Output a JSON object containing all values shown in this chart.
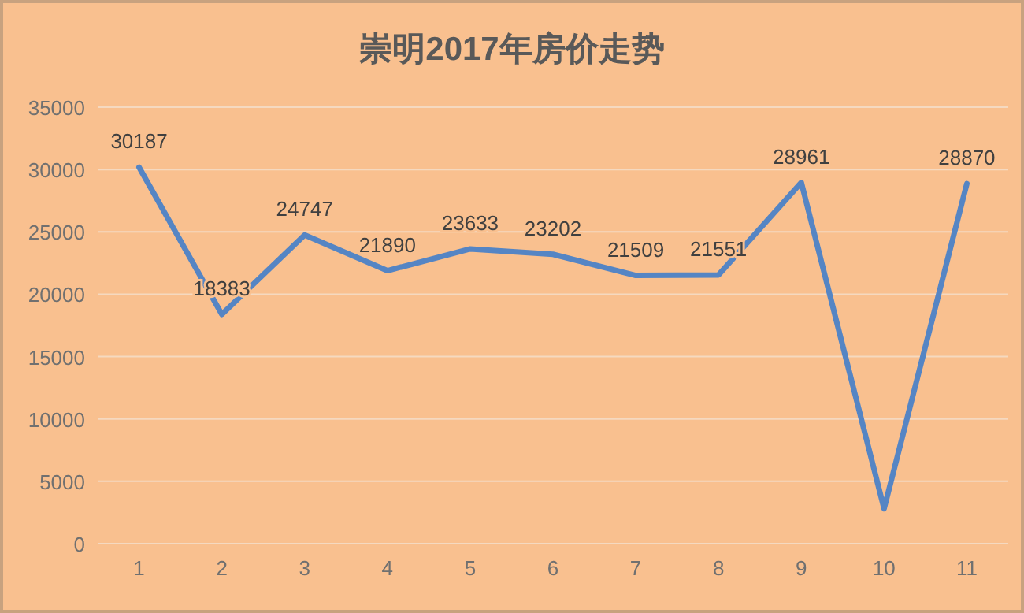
{
  "chart_data": {
    "type": "line",
    "title": "崇明2017年房价走势",
    "categories": [
      "1",
      "2",
      "3",
      "4",
      "5",
      "6",
      "7",
      "8",
      "9",
      "10",
      "11"
    ],
    "series": [
      {
        "color": "#5585c4",
        "values": [
          30187,
          18383,
          24747,
          21890,
          23633,
          23202,
          21509,
          21551,
          28961,
          2800,
          28870
        ],
        "value_labels": [
          "30187",
          "18383",
          "24747",
          "21890",
          "23633",
          "23202",
          "21509",
          "21551",
          "28961",
          null,
          "28870"
        ]
      }
    ],
    "ylim": [
      0,
      35000
    ],
    "yticks": [
      0,
      5000,
      10000,
      15000,
      20000,
      25000,
      30000,
      35000
    ],
    "grid": "y",
    "marker": "none",
    "line_style": "solid"
  }
}
